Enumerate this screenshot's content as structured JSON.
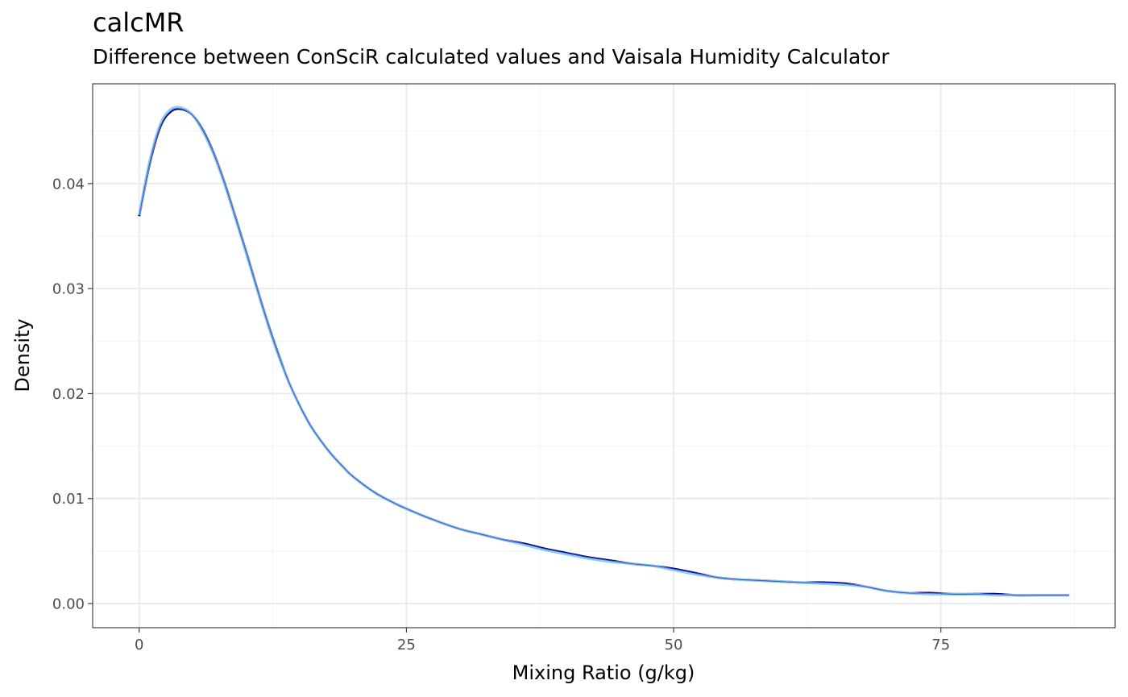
{
  "title": "calcMR",
  "subtitle": "Difference between ConSciR calculated values and Vaisala Humidity Calculator",
  "colors": {
    "background": "#ffffff",
    "panel_border": "#333333",
    "grid_major": "#ebebeb",
    "grid_minor": "#f3f3f3",
    "tick_text": "#4d4d4d",
    "series_outer": "#8ccbf2",
    "series_inner": "#00008b"
  },
  "chart_data": {
    "type": "line",
    "title": "calcMR",
    "subtitle": "Difference between ConSciR calculated values and Vaisala Humidity Calculator",
    "xlabel": "Mixing Ratio (g/kg)",
    "ylabel": "Density",
    "xlim": [
      -4.35,
      91.3
    ],
    "ylim": [
      -0.0023,
      0.0495
    ],
    "x_ticks": [
      0,
      25,
      50,
      75
    ],
    "x_tick_labels": [
      "0",
      "25",
      "50",
      "75"
    ],
    "y_ticks": [
      0,
      0.01,
      0.02,
      0.03,
      0.04
    ],
    "y_tick_labels": [
      "0.00",
      "0.01",
      "0.02",
      "0.03",
      "0.04"
    ],
    "grid": true,
    "legend": "none",
    "series": [
      {
        "color": "#00008b",
        "x": [
          0,
          1,
          2,
          3,
          4,
          5,
          6,
          7,
          8,
          9,
          10,
          11,
          12,
          13,
          14,
          15,
          16,
          17,
          18,
          19,
          20,
          22,
          24,
          26,
          28,
          30,
          32,
          34,
          36,
          38,
          40,
          42,
          44,
          46,
          48,
          50,
          52,
          54,
          56,
          58,
          60,
          62,
          64,
          66,
          68,
          70,
          72,
          74,
          76,
          78,
          80,
          82,
          84,
          86,
          87
        ],
        "y": [
          0.0369,
          0.042,
          0.0455,
          0.0469,
          0.0471,
          0.0465,
          0.045,
          0.0428,
          0.04,
          0.0368,
          0.0335,
          0.0301,
          0.0268,
          0.0238,
          0.0211,
          0.0189,
          0.017,
          0.0155,
          0.0142,
          0.0131,
          0.0121,
          0.0106,
          0.0095,
          0.0086,
          0.0078,
          0.0071,
          0.0066,
          0.0061,
          0.0057,
          0.0052,
          0.0048,
          0.0044,
          0.0041,
          0.0038,
          0.0036,
          0.0033,
          0.0029,
          0.0025,
          0.0023,
          0.0022,
          0.0021,
          0.002,
          0.002,
          0.0019,
          0.0016,
          0.0012,
          0.001,
          0.001,
          0.0009,
          0.0009,
          0.0009,
          0.0008,
          0.0008,
          0.0008,
          0.0008
        ]
      },
      {
        "color": "#8ccbf2",
        "x": [
          0,
          1,
          2,
          3,
          4,
          5,
          6,
          7,
          8,
          9,
          10,
          11,
          12,
          13,
          14,
          15,
          16,
          17,
          18,
          19,
          20,
          22,
          24,
          26,
          28,
          30,
          32,
          34,
          36,
          38,
          40,
          42,
          44,
          46,
          48,
          50,
          52,
          54,
          56,
          58,
          60,
          62,
          64,
          66,
          68,
          70,
          72,
          74,
          76,
          78,
          80,
          82,
          84,
          86,
          87
        ],
        "y": [
          0.037,
          0.0422,
          0.0457,
          0.0471,
          0.0472,
          0.0465,
          0.0449,
          0.0427,
          0.0399,
          0.0367,
          0.0334,
          0.03,
          0.0267,
          0.0237,
          0.0211,
          0.0189,
          0.017,
          0.0155,
          0.0142,
          0.0131,
          0.0121,
          0.0106,
          0.0095,
          0.0086,
          0.0078,
          0.0071,
          0.0066,
          0.0061,
          0.0056,
          0.0051,
          0.0047,
          0.0043,
          0.004,
          0.0038,
          0.0036,
          0.0032,
          0.0028,
          0.0025,
          0.0023,
          0.0022,
          0.0021,
          0.002,
          0.0019,
          0.0018,
          0.0016,
          0.0012,
          0.001,
          0.0009,
          0.0009,
          0.0009,
          0.0008,
          0.0008,
          0.0008,
          0.0008,
          0.0008
        ]
      }
    ]
  }
}
